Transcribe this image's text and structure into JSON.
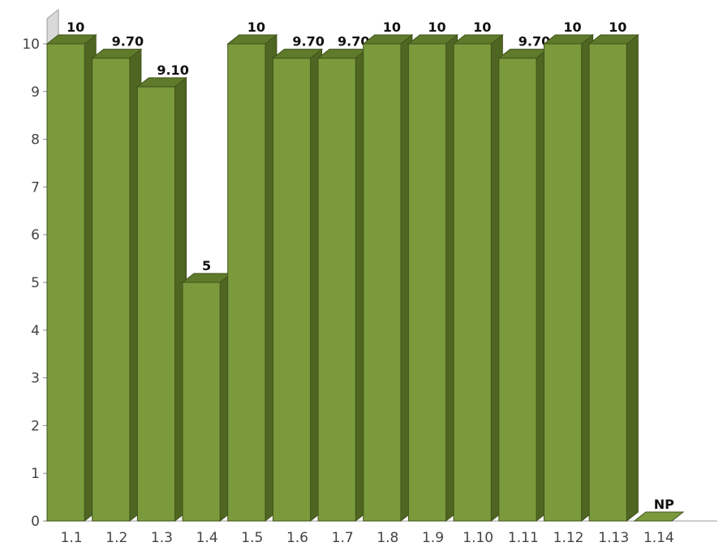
{
  "chart_data": {
    "type": "bar",
    "three_d": true,
    "categories": [
      "1.1",
      "1.2",
      "1.3",
      "1.4",
      "1.5",
      "1.6",
      "1.7",
      "1.8",
      "1.9",
      "1.10",
      "1.11",
      "1.12",
      "1.13",
      "1.14"
    ],
    "values": [
      10,
      9.7,
      9.1,
      5,
      10,
      9.7,
      9.7,
      10,
      10,
      10,
      9.7,
      10,
      10,
      0
    ],
    "data_labels": [
      "10",
      "9.70",
      "9.10",
      "5",
      "10",
      "9.70",
      "9.70",
      "10",
      "10",
      "10",
      "9.70",
      "10",
      "10",
      "NP"
    ],
    "title": "",
    "xlabel": "",
    "ylabel": "",
    "ylim": [
      0,
      10
    ],
    "yticks": [
      0,
      1,
      2,
      3,
      4,
      5,
      6,
      7,
      8,
      9,
      10
    ],
    "grid": false,
    "legend": "none",
    "colors": {
      "bar_front": "#7b9a3c",
      "bar_top": "#5f7a2a",
      "bar_side": "#4f6622",
      "bar_edge": "#3f521b",
      "wall": "#d9d9d9",
      "wall_edge": "#9a9a9a"
    }
  }
}
